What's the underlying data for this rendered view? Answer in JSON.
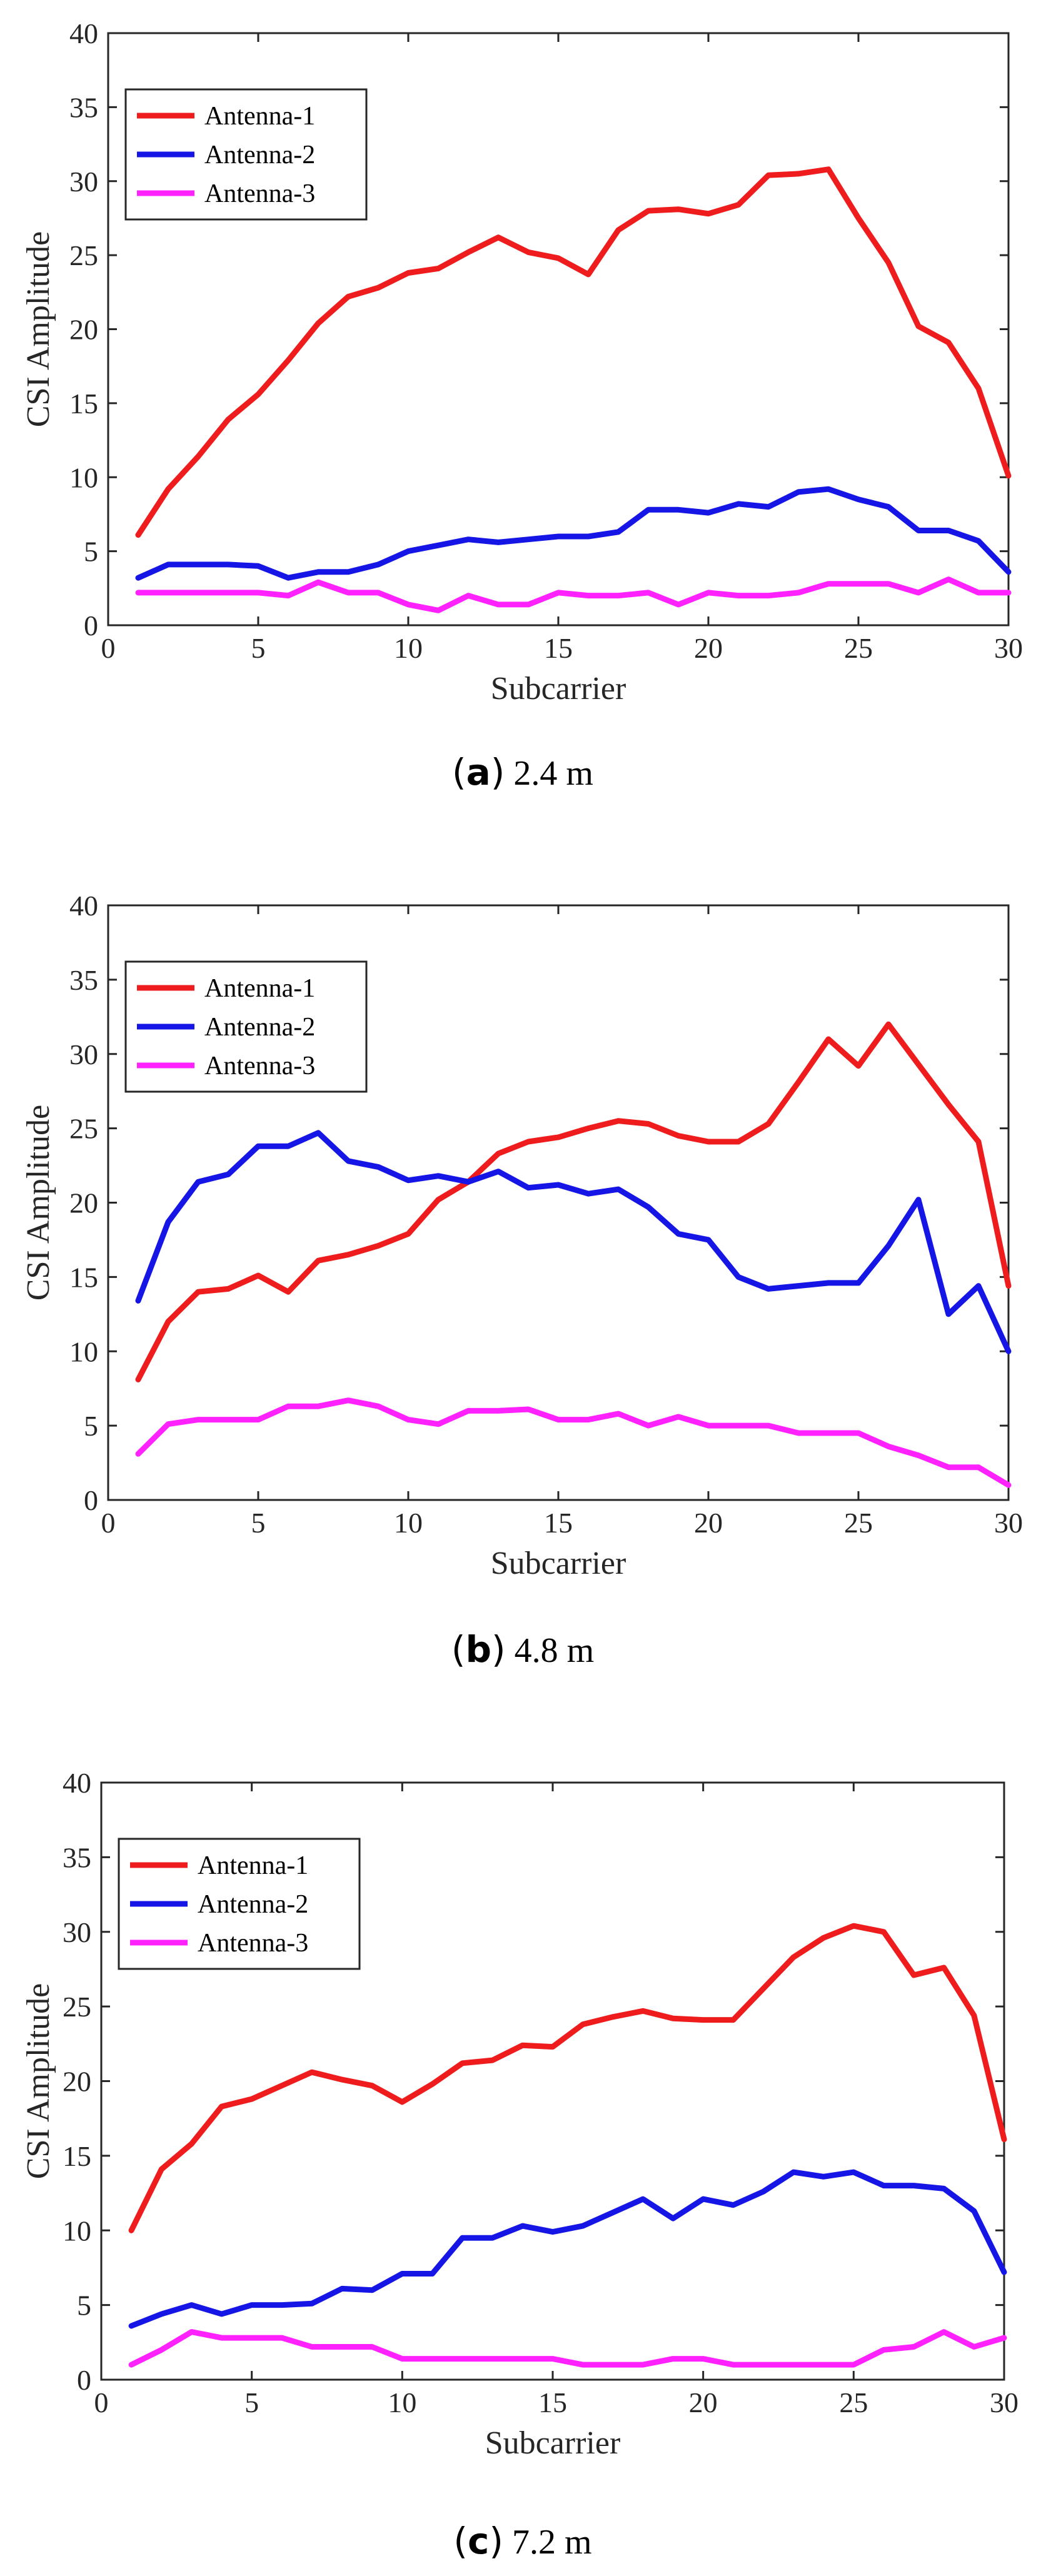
{
  "colors": {
    "antenna1": "#ee1c1c",
    "antenna2": "#1515e6",
    "antenna3": "#ff22ff",
    "axis": "#262626"
  },
  "chart_data": [
    {
      "type": "line",
      "caption": {
        "letter": "a",
        "text": "2.4 m"
      },
      "xlabel": "Subcarrier",
      "ylabel": "CSI Amplitude",
      "xlim": [
        0,
        30
      ],
      "ylim": [
        0,
        40
      ],
      "xticks": [
        0,
        5,
        10,
        15,
        20,
        25,
        30
      ],
      "yticks": [
        0,
        5,
        10,
        15,
        20,
        25,
        30,
        35,
        40
      ],
      "legend": "top-left",
      "x": [
        1,
        2,
        3,
        4,
        5,
        6,
        7,
        8,
        9,
        10,
        11,
        12,
        13,
        14,
        15,
        16,
        17,
        18,
        19,
        20,
        21,
        22,
        23,
        24,
        25,
        26,
        27,
        28,
        29,
        30
      ],
      "series": [
        {
          "name": "Antenna-1",
          "color": "#ee1c1c",
          "values": [
            6.1,
            9.2,
            11.4,
            13.9,
            15.6,
            17.9,
            20.4,
            22.2,
            22.8,
            23.8,
            24.1,
            25.2,
            26.2,
            25.2,
            24.8,
            23.7,
            26.7,
            28.0,
            28.1,
            27.8,
            28.4,
            30.4,
            30.5,
            30.8,
            27.5,
            24.5,
            20.2,
            19.1,
            16.0,
            10.1
          ]
        },
        {
          "name": "Antenna-2",
          "color": "#1515e6",
          "values": [
            3.2,
            4.1,
            4.1,
            4.1,
            4.0,
            3.2,
            3.6,
            3.6,
            4.1,
            5.0,
            5.4,
            5.8,
            5.6,
            5.8,
            6.0,
            6.0,
            6.3,
            7.8,
            7.8,
            7.6,
            8.2,
            8.0,
            9.0,
            9.2,
            8.5,
            8.0,
            6.4,
            6.4,
            5.7,
            3.6
          ]
        },
        {
          "name": "Antenna-3",
          "color": "#ff22ff",
          "values": [
            2.2,
            2.2,
            2.2,
            2.2,
            2.2,
            2.0,
            2.9,
            2.2,
            2.2,
            1.4,
            1.0,
            2.0,
            1.4,
            1.4,
            2.2,
            2.0,
            2.0,
            2.2,
            1.4,
            2.2,
            2.0,
            2.0,
            2.2,
            2.8,
            2.8,
            2.8,
            2.2,
            3.1,
            2.2,
            2.2
          ]
        }
      ]
    },
    {
      "type": "line",
      "caption": {
        "letter": "b",
        "text": "4.8 m"
      },
      "xlabel": "Subcarrier",
      "ylabel": "CSI Amplitude",
      "xlim": [
        0,
        30
      ],
      "ylim": [
        0,
        40
      ],
      "xticks": [
        0,
        5,
        10,
        15,
        20,
        25,
        30
      ],
      "yticks": [
        0,
        5,
        10,
        15,
        20,
        25,
        30,
        35,
        40
      ],
      "legend": "top-left",
      "x": [
        1,
        2,
        3,
        4,
        5,
        6,
        7,
        8,
        9,
        10,
        11,
        12,
        13,
        14,
        15,
        16,
        17,
        18,
        19,
        20,
        21,
        22,
        23,
        24,
        25,
        26,
        27,
        28,
        29,
        30
      ],
      "series": [
        {
          "name": "Antenna-1",
          "color": "#ee1c1c",
          "values": [
            8.1,
            12.0,
            14.0,
            14.2,
            15.1,
            14.0,
            16.1,
            16.5,
            17.1,
            17.9,
            20.2,
            21.4,
            23.3,
            24.1,
            24.4,
            25.0,
            25.5,
            25.3,
            24.5,
            24.1,
            24.1,
            25.3,
            28.1,
            31.0,
            29.2,
            32.0,
            29.3,
            26.6,
            24.1,
            14.4
          ]
        },
        {
          "name": "Antenna-2",
          "color": "#1515e6",
          "values": [
            13.4,
            18.7,
            21.4,
            21.9,
            23.8,
            23.8,
            24.7,
            22.8,
            22.4,
            21.5,
            21.8,
            21.4,
            22.1,
            21.0,
            21.2,
            20.6,
            20.9,
            19.7,
            17.9,
            17.5,
            15.0,
            14.2,
            14.4,
            14.6,
            14.6,
            17.1,
            20.2,
            12.5,
            14.4,
            10.0
          ]
        },
        {
          "name": "Antenna-3",
          "color": "#ff22ff",
          "values": [
            3.1,
            5.1,
            5.4,
            5.4,
            5.4,
            6.3,
            6.3,
            6.7,
            6.3,
            5.4,
            5.1,
            6.0,
            6.0,
            6.1,
            5.4,
            5.4,
            5.8,
            5.0,
            5.6,
            5.0,
            5.0,
            5.0,
            4.5,
            4.5,
            4.5,
            3.6,
            3.0,
            2.2,
            2.2,
            1.0
          ]
        }
      ]
    },
    {
      "type": "line",
      "caption": {
        "letter": "c",
        "text": "7.2 m"
      },
      "xlabel": "Subcarrier",
      "ylabel": "CSI Amplitude",
      "xlim": [
        0,
        30
      ],
      "ylim": [
        0,
        40
      ],
      "xticks": [
        0,
        5,
        10,
        15,
        20,
        25,
        30
      ],
      "yticks": [
        0,
        5,
        10,
        15,
        20,
        25,
        30,
        35,
        40
      ],
      "legend": "top-left",
      "x": [
        1,
        2,
        3,
        4,
        5,
        6,
        7,
        8,
        9,
        10,
        11,
        12,
        13,
        14,
        15,
        16,
        17,
        18,
        19,
        20,
        21,
        22,
        23,
        24,
        25,
        26,
        27,
        28,
        29,
        30
      ],
      "series": [
        {
          "name": "Antenna-1",
          "color": "#ee1c1c",
          "values": [
            10.0,
            14.1,
            15.8,
            18.3,
            18.8,
            19.7,
            20.6,
            20.1,
            19.7,
            18.6,
            19.8,
            21.2,
            21.4,
            22.4,
            22.3,
            23.8,
            24.3,
            24.7,
            24.2,
            24.1,
            24.1,
            26.2,
            28.3,
            29.6,
            30.4,
            30.0,
            27.1,
            27.6,
            24.4,
            16.1
          ]
        },
        {
          "name": "Antenna-2",
          "color": "#1515e6",
          "values": [
            3.6,
            4.4,
            5.0,
            4.4,
            5.0,
            5.0,
            5.1,
            6.1,
            6.0,
            7.1,
            7.1,
            9.5,
            9.5,
            10.3,
            9.9,
            10.3,
            11.2,
            12.1,
            10.8,
            12.1,
            11.7,
            12.6,
            13.9,
            13.6,
            13.9,
            13.0,
            13.0,
            12.8,
            11.3,
            7.2
          ]
        },
        {
          "name": "Antenna-3",
          "color": "#ff22ff",
          "values": [
            1.0,
            2.0,
            3.2,
            2.8,
            2.8,
            2.8,
            2.2,
            2.2,
            2.2,
            1.4,
            1.4,
            1.4,
            1.4,
            1.4,
            1.4,
            1.0,
            1.0,
            1.0,
            1.4,
            1.4,
            1.0,
            1.0,
            1.0,
            1.0,
            1.0,
            2.0,
            2.2,
            3.2,
            2.2,
            2.8
          ]
        }
      ]
    }
  ]
}
